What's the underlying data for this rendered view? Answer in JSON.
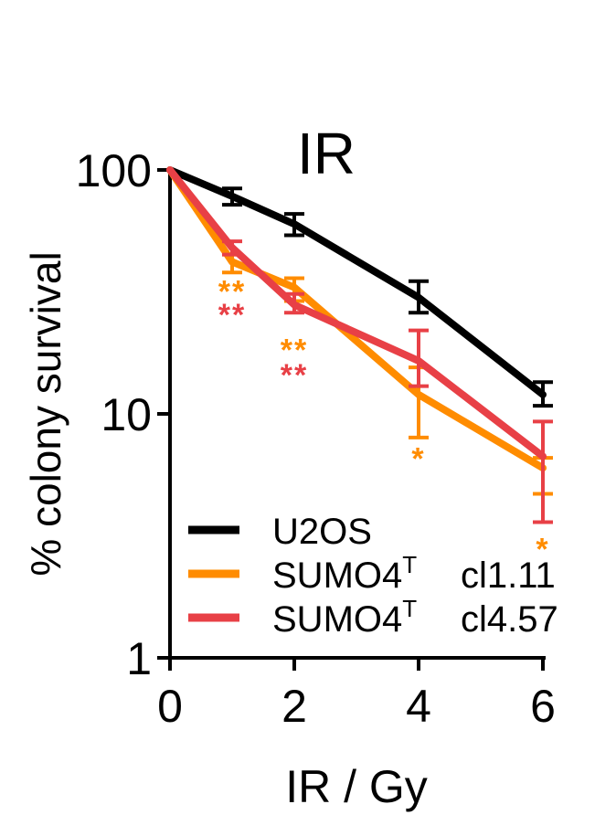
{
  "chart_data": {
    "type": "line",
    "title": "IR",
    "xlabel": "IR / Gy",
    "ylabel": "% colony survival",
    "yscale": "log",
    "xlim": [
      0,
      6
    ],
    "ylim": [
      1,
      100
    ],
    "xticks": [
      {
        "value": 0,
        "label": "0"
      },
      {
        "value": 2,
        "label": "2"
      },
      {
        "value": 4,
        "label": "4"
      },
      {
        "value": 6,
        "label": "6"
      }
    ],
    "yticks": [
      {
        "value": 1,
        "label": "1"
      },
      {
        "value": 10,
        "label": "10"
      },
      {
        "value": 100,
        "label": "100"
      }
    ],
    "legend_position": "bottom-left",
    "series": [
      {
        "name": "U2OS",
        "name_suffix": "",
        "color": "#000000",
        "x": [
          0,
          1,
          2,
          4,
          6
        ],
        "y": [
          100,
          78,
          60,
          30,
          12
        ],
        "err_low": [
          100,
          72,
          54,
          26,
          10.8
        ],
        "err_high": [
          100,
          84,
          66,
          35,
          13.5
        ]
      },
      {
        "name": "SUMO4",
        "name_sup": "T",
        "name_suffix": "cl1.11",
        "color": "#FF8C00",
        "x": [
          0,
          1,
          2,
          4,
          6
        ],
        "y": [
          100,
          42,
          33,
          12,
          6
        ],
        "err_low": [
          100,
          38,
          29,
          8,
          4.7
        ],
        "err_high": [
          100,
          45,
          36,
          15.5,
          6.6
        ]
      },
      {
        "name": "SUMO4",
        "name_sup": "T",
        "name_suffix": "cl4.57",
        "color": "#E84046",
        "x": [
          0,
          1,
          2,
          4,
          6
        ],
        "y": [
          100,
          48,
          28,
          16.5,
          6.7
        ],
        "err_low": [
          100,
          45,
          26,
          13,
          3.6
        ],
        "err_high": [
          100,
          51,
          31,
          22,
          9.3
        ]
      }
    ],
    "annotations": [
      {
        "text": "**",
        "x": 1,
        "y": 33,
        "color": "#FF8C00"
      },
      {
        "text": "**",
        "x": 1,
        "y": 26.5,
        "color": "#E84046"
      },
      {
        "text": "**",
        "x": 2,
        "y": 19,
        "color": "#FF8C00"
      },
      {
        "text": "**",
        "x": 2,
        "y": 15,
        "color": "#E84046"
      },
      {
        "text": "*",
        "x": 4,
        "y": 6.8,
        "color": "#FF8C00"
      },
      {
        "text": "*",
        "x": 6,
        "y": 2.9,
        "color": "#FF8C00"
      }
    ]
  }
}
